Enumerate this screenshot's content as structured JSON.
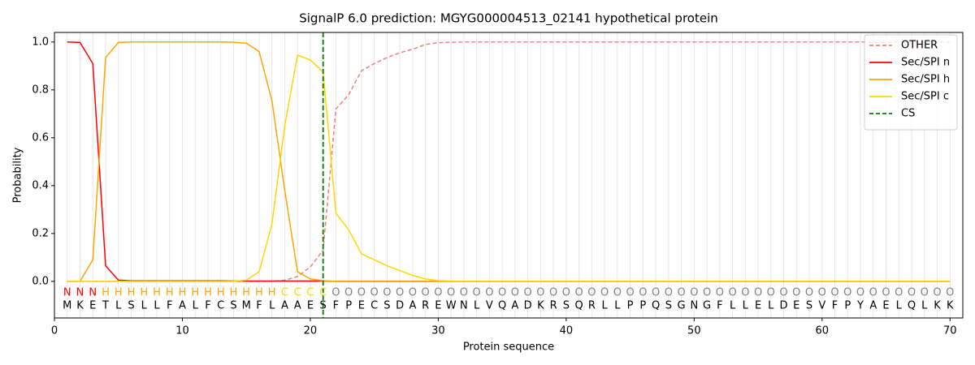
{
  "chart_data": {
    "type": "line",
    "title": "SignalP 6.0 prediction: MGYG000004513_02141 hypothetical protein",
    "x_label": "Protein sequence",
    "y_label": "Probability",
    "x": [
      1,
      2,
      3,
      4,
      5,
      6,
      7,
      8,
      9,
      10,
      11,
      12,
      13,
      14,
      15,
      16,
      17,
      18,
      19,
      20,
      21,
      22,
      23,
      24,
      25,
      26,
      27,
      28,
      29,
      30,
      31,
      32,
      33,
      34,
      35,
      36,
      37,
      38,
      39,
      40,
      41,
      42,
      43,
      44,
      45,
      46,
      47,
      48,
      49,
      50,
      51,
      52,
      53,
      54,
      55,
      56,
      57,
      58,
      59,
      60,
      61,
      62,
      63,
      64,
      65,
      66,
      67,
      68,
      69,
      70
    ],
    "sequence": [
      "M",
      "K",
      "E",
      "T",
      "L",
      "S",
      "L",
      "L",
      "F",
      "A",
      "L",
      "F",
      "C",
      "S",
      "M",
      "F",
      "L",
      "A",
      "A",
      "E",
      "S",
      "F",
      "P",
      "E",
      "C",
      "S",
      "D",
      "A",
      "R",
      "E",
      "W",
      "N",
      "L",
      "V",
      "Q",
      "A",
      "D",
      "K",
      "R",
      "S",
      "Q",
      "R",
      "L",
      "L",
      "P",
      "P",
      "Q",
      "S",
      "G",
      "N",
      "G",
      "F",
      "L",
      "L",
      "E",
      "L",
      "D",
      "E",
      "S",
      "V",
      "F",
      "P",
      "Y",
      "A",
      "E",
      "L",
      "Q",
      "L",
      "K",
      "K"
    ],
    "labels": [
      "N",
      "N",
      "N",
      "H",
      "H",
      "H",
      "H",
      "H",
      "H",
      "H",
      "H",
      "H",
      "H",
      "H",
      "H",
      "H",
      "H",
      "C",
      "C",
      "C",
      "C",
      "O",
      "O",
      "O",
      "O",
      "O",
      "O",
      "O",
      "O",
      "O",
      "O",
      "O",
      "O",
      "O",
      "O",
      "O",
      "O",
      "O",
      "O",
      "O",
      "O",
      "O",
      "O",
      "O",
      "O",
      "O",
      "O",
      "O",
      "O",
      "O",
      "O",
      "O",
      "O",
      "O",
      "O",
      "O",
      "O",
      "O",
      "O",
      "O",
      "O",
      "O",
      "O",
      "O",
      "O",
      "O",
      "O",
      "O",
      "O",
      "O"
    ],
    "label_colors": {
      "N": "#ff0000",
      "H": "#ffa500",
      "C": "#ffd700",
      "O": "#808080"
    },
    "series": [
      {
        "name": "OTHER",
        "color": "#f08080",
        "dashed": true,
        "values": [
          0,
          0,
          0,
          0,
          0,
          0,
          0,
          0,
          0,
          0,
          0,
          0,
          0,
          0,
          0,
          0,
          0,
          0.005,
          0.02,
          0.06,
          0.13,
          0.72,
          0.78,
          0.88,
          0.91,
          0.935,
          0.955,
          0.97,
          0.99,
          0.997,
          0.999,
          1,
          1,
          1,
          1,
          1,
          1,
          1,
          1,
          1,
          1,
          1,
          1,
          1,
          1,
          1,
          1,
          1,
          1,
          1,
          1,
          1,
          1,
          1,
          1,
          1,
          1,
          1,
          1,
          1,
          1,
          1,
          1,
          1,
          1,
          1,
          1,
          1,
          1,
          1
        ]
      },
      {
        "name": "Sec/SPI n",
        "color": "#ff0000",
        "dashed": false,
        "values": [
          1.0,
          0.998,
          0.91,
          0.065,
          0.005,
          0.002,
          0.002,
          0.002,
          0.002,
          0.002,
          0.002,
          0.002,
          0.002,
          0.001,
          0.001,
          0.001,
          0.001,
          0.001,
          0.001,
          0.001,
          0.001,
          0,
          0,
          0,
          0,
          0,
          0,
          0,
          0,
          0,
          0,
          0,
          0,
          0,
          0,
          0,
          0,
          0,
          0,
          0,
          0,
          0,
          0,
          0,
          0,
          0,
          0,
          0,
          0,
          0,
          0,
          0,
          0,
          0,
          0,
          0,
          0,
          0,
          0,
          0,
          0,
          0,
          0,
          0,
          0,
          0,
          0,
          0,
          0,
          0
        ]
      },
      {
        "name": "Sec/SPI h",
        "color": "#ffa500",
        "dashed": false,
        "values": [
          0,
          0,
          0.09,
          0.935,
          0.998,
          1,
          1,
          1,
          1,
          1,
          1,
          1,
          1,
          0.999,
          0.995,
          0.96,
          0.755,
          0.38,
          0.04,
          0.01,
          0.003,
          0,
          0,
          0,
          0,
          0,
          0,
          0,
          0,
          0,
          0,
          0,
          0,
          0,
          0,
          0,
          0,
          0,
          0,
          0,
          0,
          0,
          0,
          0,
          0,
          0,
          0,
          0,
          0,
          0,
          0,
          0,
          0,
          0,
          0,
          0,
          0,
          0,
          0,
          0,
          0,
          0,
          0,
          0,
          0,
          0,
          0,
          0,
          0,
          0
        ]
      },
      {
        "name": "Sec/SPI c",
        "color": "#ffd700",
        "dashed": false,
        "values": [
          0,
          0,
          0,
          0,
          0,
          0,
          0,
          0,
          0,
          0,
          0,
          0,
          0,
          0,
          0.005,
          0.04,
          0.24,
          0.65,
          0.945,
          0.925,
          0.875,
          0.285,
          0.215,
          0.115,
          0.09,
          0.065,
          0.045,
          0.025,
          0.01,
          0.003,
          0.001,
          0,
          0,
          0,
          0,
          0,
          0,
          0,
          0,
          0,
          0,
          0,
          0,
          0,
          0,
          0,
          0,
          0,
          0,
          0,
          0,
          0,
          0,
          0,
          0,
          0,
          0,
          0,
          0,
          0,
          0,
          0,
          0,
          0,
          0,
          0,
          0,
          0,
          0,
          0
        ]
      }
    ],
    "cs": {
      "name": "CS",
      "x": 21,
      "color": "#008000"
    },
    "xlim": [
      0,
      71
    ],
    "ylim": [
      -0.153,
      1.04
    ],
    "xticks": [
      0,
      10,
      20,
      30,
      40,
      50,
      60,
      70
    ],
    "yticks": [
      {
        "value": 0,
        "label": "0.0"
      },
      {
        "value": 0.2,
        "label": "0.2"
      },
      {
        "value": 0.4,
        "label": "0.4"
      },
      {
        "value": 0.6,
        "label": "0.6"
      },
      {
        "value": 0.8,
        "label": "0.8"
      },
      {
        "value": 1.0,
        "label": "1.0"
      }
    ],
    "legend": "upper right"
  }
}
